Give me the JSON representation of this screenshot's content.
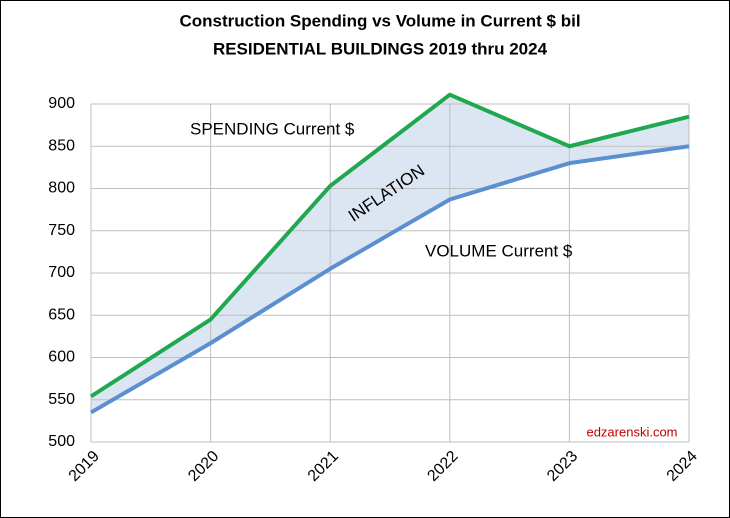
{
  "chart_data": {
    "type": "line",
    "title": "Construction Spending vs Volume in Current $ bil",
    "subtitle": "RESIDENTIAL BUILDINGS 2019 thru 2024",
    "categories": [
      "2019",
      "2020",
      "2021",
      "2022",
      "2023",
      "2024"
    ],
    "series": [
      {
        "name": "SPENDING Current $",
        "color": "#1fa84f",
        "values": [
          554,
          645,
          803,
          911,
          850,
          885
        ]
      },
      {
        "name": "VOLUME Current $",
        "color": "#5b8fd0",
        "values": [
          535,
          617,
          705,
          787,
          830,
          850
        ]
      }
    ],
    "band_label": "INFLATION",
    "band_color": "#dce6f2",
    "source": "edzarenski.com",
    "source_color": "#c00000",
    "ylim": [
      500,
      900
    ],
    "yticks": [
      500,
      550,
      600,
      650,
      700,
      750,
      800,
      850,
      900
    ],
    "grid": true
  }
}
